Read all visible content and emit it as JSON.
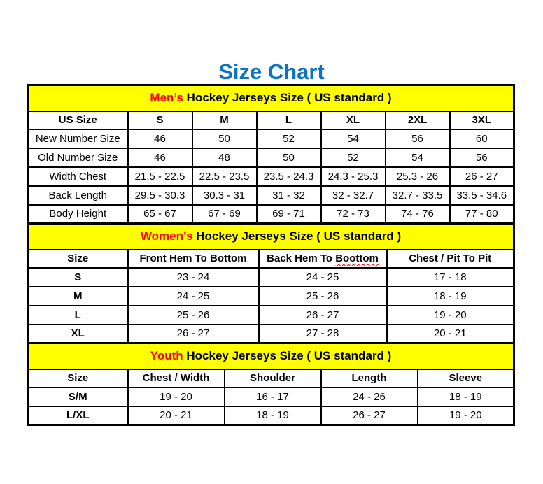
{
  "page_title": "Size Chart",
  "colors": {
    "title_blue": "#0b72c4",
    "band_yellow": "#ffff00",
    "accent_red": "#ff0000",
    "border_black": "#000000"
  },
  "mens": {
    "band": {
      "prefix": "Men’s",
      "rest": " Hockey Jerseys Size ( US standard )"
    },
    "columns": [
      "US Size",
      "S",
      "M",
      "L",
      "XL",
      "2XL",
      "3XL"
    ],
    "bold_labels": false,
    "rows": [
      {
        "label": "New Number Size",
        "values": [
          "46",
          "50",
          "52",
          "54",
          "56",
          "60"
        ]
      },
      {
        "label": "Old Number Size",
        "values": [
          "46",
          "48",
          "50",
          "52",
          "54",
          "56"
        ]
      },
      {
        "label": "Width Chest",
        "values": [
          "21.5 - 22.5",
          "22.5 - 23.5",
          "23.5 - 24.3",
          "24.3 - 25.3",
          "25.3 - 26",
          "26 - 27"
        ]
      },
      {
        "label": "Back Length",
        "values": [
          "29.5 - 30.3",
          "30.3 - 31",
          "31 - 32",
          "32 - 32.7",
          "32.7 - 33.5",
          "33.5 - 34.6"
        ]
      },
      {
        "label": "Body Height",
        "values": [
          "65 - 67",
          "67 - 69",
          "69 - 71",
          "72 - 73",
          "74 - 76",
          "77 - 80"
        ]
      }
    ]
  },
  "womens": {
    "band": {
      "prefix": "Women’s",
      "rest": " Hockey Jerseys Size ( US standard )"
    },
    "columns": [
      "Size",
      "Front Hem To Bottom",
      {
        "text": "Back Hem To ",
        "underlined": "Boottom"
      },
      "Chest / Pit To Pit"
    ],
    "bold_labels": true,
    "rows": [
      {
        "label": "S",
        "values": [
          "23 - 24",
          "24 - 25",
          "17 - 18"
        ]
      },
      {
        "label": "M",
        "values": [
          "24 - 25",
          "25 - 26",
          "18 - 19"
        ]
      },
      {
        "label": "L",
        "values": [
          "25 - 26",
          "26 - 27",
          "19 - 20"
        ]
      },
      {
        "label": "XL",
        "values": [
          "26 - 27",
          "27 - 28",
          "20 - 21"
        ]
      }
    ]
  },
  "youth": {
    "band": {
      "prefix": "Youth",
      "rest": " Hockey Jerseys Size ( US standard )"
    },
    "columns": [
      "Size",
      "Chest / Width",
      "Shoulder",
      "Length",
      "Sleeve"
    ],
    "bold_labels": true,
    "rows": [
      {
        "label": "S/M",
        "values": [
          "19 - 20",
          "16 - 17",
          "24 - 26",
          "18 - 19"
        ]
      },
      {
        "label": "L/XL",
        "values": [
          "20 - 21",
          "18 - 19",
          "26 - 27",
          "19 - 20"
        ]
      }
    ]
  }
}
